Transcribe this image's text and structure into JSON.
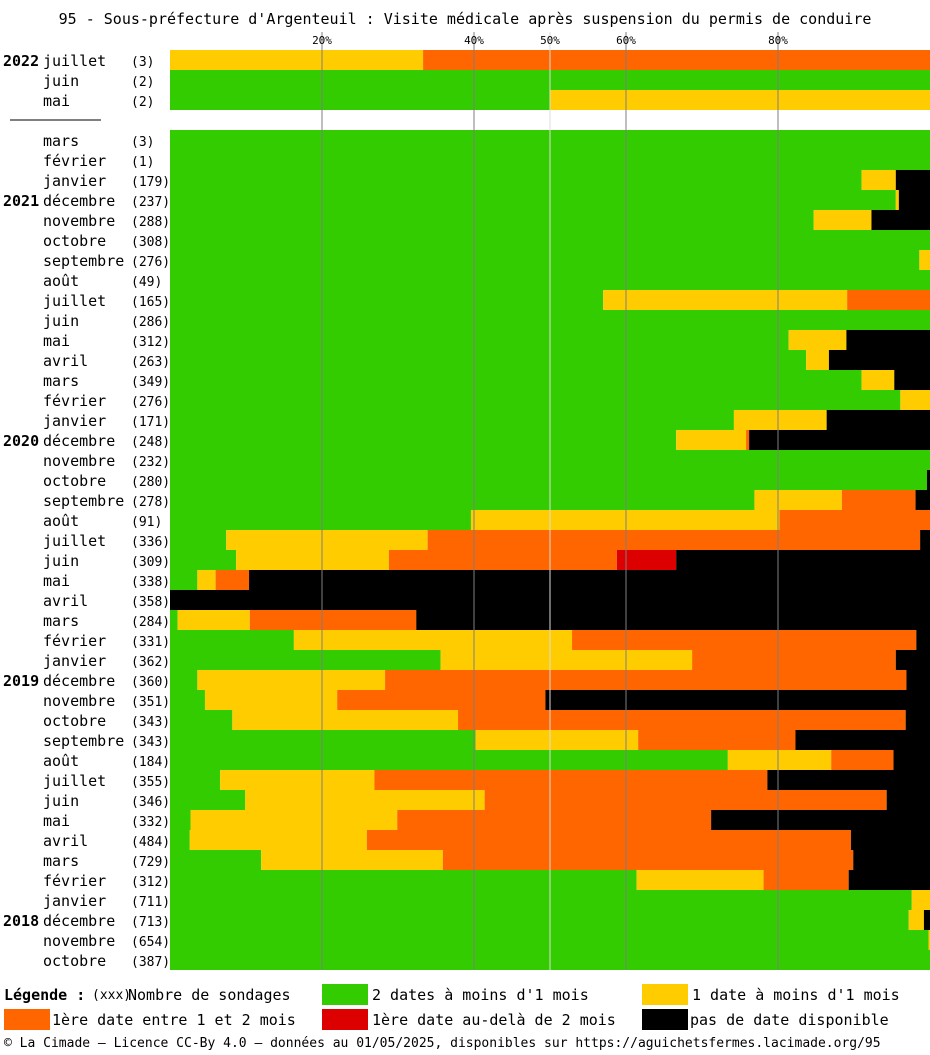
{
  "title": "95 - Sous-préfecture d'Argenteuil : Visite médicale après suspension du permis de conduire",
  "chart_data": {
    "type": "bar",
    "stacked": true,
    "orientation": "horizontal",
    "xlim": [
      0,
      100
    ],
    "x_ticks": [
      {
        "value": 20,
        "label": "20%"
      },
      {
        "value": 40,
        "label": "40%"
      },
      {
        "value": 50,
        "label": "50%"
      },
      {
        "value": 60,
        "label": "60%"
      },
      {
        "value": 80,
        "label": "80%"
      }
    ],
    "series": [
      {
        "key": "g",
        "name": "2 dates à moins d'1 mois",
        "color": "#33cc00"
      },
      {
        "key": "y",
        "name": "1 date à moins d'1 mois",
        "color": "#ffcc00"
      },
      {
        "key": "o",
        "name": "1ère date entre 1 et 2 mois",
        "color": "#ff6600"
      },
      {
        "key": "r",
        "name": "1ère date au-delà de 2 mois",
        "color": "#dd0000"
      },
      {
        "key": "k",
        "name": "pas de date disponible",
        "color": "#000000"
      }
    ],
    "rows": [
      {
        "year": "2022",
        "month": "juillet",
        "count": "(3)",
        "g": 0,
        "y": 33.3,
        "o": 66.7,
        "r": 0,
        "k": 0
      },
      {
        "year": "",
        "month": "juin",
        "count": "(2)",
        "g": 100,
        "y": 0,
        "o": 0,
        "r": 0,
        "k": 0
      },
      {
        "year": "",
        "month": "mai",
        "count": "(2)",
        "g": 50,
        "y": 50,
        "o": 0,
        "r": 0,
        "k": 0
      },
      {
        "gap": true
      },
      {
        "year": "",
        "month": "mars",
        "count": "(3)",
        "g": 100,
        "y": 0,
        "o": 0,
        "r": 0,
        "k": 0
      },
      {
        "year": "",
        "month": "février",
        "count": "(1)",
        "g": 100,
        "y": 0,
        "o": 0,
        "r": 0,
        "k": 0
      },
      {
        "year": "",
        "month": "janvier",
        "count": "(179)",
        "g": 91,
        "y": 4.5,
        "o": 0,
        "r": 0,
        "k": 4.5
      },
      {
        "year": "2021",
        "month": "décembre",
        "count": "(237)",
        "g": 95.5,
        "y": 0.4,
        "o": 0,
        "r": 0,
        "k": 4.1
      },
      {
        "year": "",
        "month": "novembre",
        "count": "(288)",
        "g": 84.7,
        "y": 7.6,
        "o": 0,
        "r": 0,
        "k": 7.7
      },
      {
        "year": "",
        "month": "octobre",
        "count": "(308)",
        "g": 100,
        "y": 0,
        "o": 0,
        "r": 0,
        "k": 0
      },
      {
        "year": "",
        "month": "septembre",
        "count": "(276)",
        "g": 98.6,
        "y": 1.4,
        "o": 0,
        "r": 0,
        "k": 0
      },
      {
        "year": "",
        "month": "août",
        "count": "(49)",
        "g": 100,
        "y": 0,
        "o": 0,
        "r": 0,
        "k": 0
      },
      {
        "year": "",
        "month": "juillet",
        "count": "(165)",
        "g": 57,
        "y": 32.1,
        "o": 10.9,
        "r": 0,
        "k": 0
      },
      {
        "year": "",
        "month": "juin",
        "count": "(286)",
        "g": 100,
        "y": 0,
        "o": 0,
        "r": 0,
        "k": 0
      },
      {
        "year": "",
        "month": "mai",
        "count": "(312)",
        "g": 81.4,
        "y": 7.6,
        "o": 0,
        "r": 0,
        "k": 11
      },
      {
        "year": "",
        "month": "avril",
        "count": "(263)",
        "g": 83.7,
        "y": 3,
        "o": 0,
        "r": 0,
        "k": 13.3
      },
      {
        "year": "",
        "month": "mars",
        "count": "(349)",
        "g": 91,
        "y": 4.3,
        "o": 0,
        "r": 0,
        "k": 4.7
      },
      {
        "year": "",
        "month": "février",
        "count": "(276)",
        "g": 96.1,
        "y": 3.9,
        "o": 0,
        "r": 0,
        "k": 0
      },
      {
        "year": "",
        "month": "janvier",
        "count": "(171)",
        "g": 74.2,
        "y": 12.2,
        "o": 0,
        "r": 0,
        "k": 13.6
      },
      {
        "year": "2020",
        "month": "décembre",
        "count": "(248)",
        "g": 66.6,
        "y": 9.2,
        "o": 0.4,
        "r": 0,
        "k": 23.8
      },
      {
        "year": "",
        "month": "novembre",
        "count": "(232)",
        "g": 100,
        "y": 0,
        "o": 0,
        "r": 0,
        "k": 0
      },
      {
        "year": "",
        "month": "octobre",
        "count": "(280)",
        "g": 99.6,
        "y": 0,
        "o": 0,
        "r": 0,
        "k": 0.4
      },
      {
        "year": "",
        "month": "septembre",
        "count": "(278)",
        "g": 76.9,
        "y": 11.5,
        "o": 9.7,
        "r": 0,
        "k": 1.9
      },
      {
        "year": "",
        "month": "août",
        "count": "(91)",
        "g": 39.6,
        "y": 40.6,
        "o": 19.8,
        "r": 0,
        "k": 0
      },
      {
        "year": "",
        "month": "juillet",
        "count": "(336)",
        "g": 7.4,
        "y": 26.5,
        "o": 64.8,
        "r": 0,
        "k": 1.3
      },
      {
        "year": "",
        "month": "juin",
        "count": "(309)",
        "g": 8.7,
        "y": 20.1,
        "o": 30,
        "r": 7.8,
        "k": 33.4
      },
      {
        "year": "",
        "month": "mai",
        "count": "(338)",
        "g": 3.6,
        "y": 2.4,
        "o": 4.4,
        "r": 0,
        "k": 89.6
      },
      {
        "year": "",
        "month": "avril",
        "count": "(358)",
        "g": 0,
        "y": 0,
        "o": 0,
        "r": 0,
        "k": 100
      },
      {
        "year": "",
        "month": "mars",
        "count": "(284)",
        "g": 1,
        "y": 9.5,
        "o": 21.9,
        "r": 0,
        "k": 67.6
      },
      {
        "year": "",
        "month": "février",
        "count": "(331)",
        "g": 16.3,
        "y": 36.6,
        "o": 45.3,
        "r": 0,
        "k": 1.8
      },
      {
        "year": "",
        "month": "janvier",
        "count": "(362)",
        "g": 35.6,
        "y": 33.1,
        "o": 26.8,
        "r": 0,
        "k": 4.5
      },
      {
        "year": "2019",
        "month": "décembre",
        "count": "(360)",
        "g": 3.6,
        "y": 24.7,
        "o": 68.6,
        "r": 0,
        "k": 3.1
      },
      {
        "year": "",
        "month": "novembre",
        "count": "(351)",
        "g": 4.6,
        "y": 17.4,
        "o": 27.4,
        "r": 0,
        "k": 50.6
      },
      {
        "year": "",
        "month": "octobre",
        "count": "(343)",
        "g": 8.2,
        "y": 29.7,
        "o": 58.9,
        "r": 0,
        "k": 3.2
      },
      {
        "year": "",
        "month": "septembre",
        "count": "(343)",
        "g": 40.2,
        "y": 21.4,
        "o": 20.7,
        "r": 0,
        "k": 17.7
      },
      {
        "year": "",
        "month": "août",
        "count": "(184)",
        "g": 73.4,
        "y": 13.6,
        "o": 8.2,
        "r": 0,
        "k": 4.8
      },
      {
        "year": "",
        "month": "juillet",
        "count": "(355)",
        "g": 6.6,
        "y": 20.3,
        "o": 51.7,
        "r": 0,
        "k": 21.4
      },
      {
        "year": "",
        "month": "juin",
        "count": "(346)",
        "g": 9.9,
        "y": 31.5,
        "o": 52.9,
        "r": 0,
        "k": 5.7
      },
      {
        "year": "",
        "month": "mai",
        "count": "(332)",
        "g": 2.7,
        "y": 27.2,
        "o": 41.3,
        "r": 0,
        "k": 28.8
      },
      {
        "year": "",
        "month": "avril",
        "count": "(484)",
        "g": 2.6,
        "y": 23.3,
        "o": 63.7,
        "r": 0,
        "k": 10.4
      },
      {
        "year": "",
        "month": "mars",
        "count": "(729)",
        "g": 12,
        "y": 23.9,
        "o": 54,
        "r": 0,
        "k": 10.1
      },
      {
        "year": "",
        "month": "février",
        "count": "(312)",
        "g": 61.4,
        "y": 16.7,
        "o": 11.2,
        "r": 0,
        "k": 10.7
      },
      {
        "year": "",
        "month": "janvier",
        "count": "(711)",
        "g": 97.6,
        "y": 2.4,
        "o": 0,
        "r": 0,
        "k": 0
      },
      {
        "year": "2018",
        "month": "décembre",
        "count": "(713)",
        "g": 97.2,
        "y": 2,
        "o": 0,
        "r": 0,
        "k": 0.8
      },
      {
        "year": "",
        "month": "novembre",
        "count": "(654)",
        "g": 99.8,
        "y": 0.2,
        "o": 0,
        "r": 0,
        "k": 0
      },
      {
        "year": "",
        "month": "octobre",
        "count": "(387)",
        "g": 100,
        "y": 0,
        "o": 0,
        "r": 0,
        "k": 0
      }
    ]
  },
  "legend": {
    "title": "Légende :",
    "count_marker": "(xxx)",
    "count_label": "Nombre de sondages"
  },
  "footer": "© La Cimade — Licence CC-By 4.0 — données au 01/05/2025, disponibles sur https://aguichetsfermes.lacimade.org/95"
}
